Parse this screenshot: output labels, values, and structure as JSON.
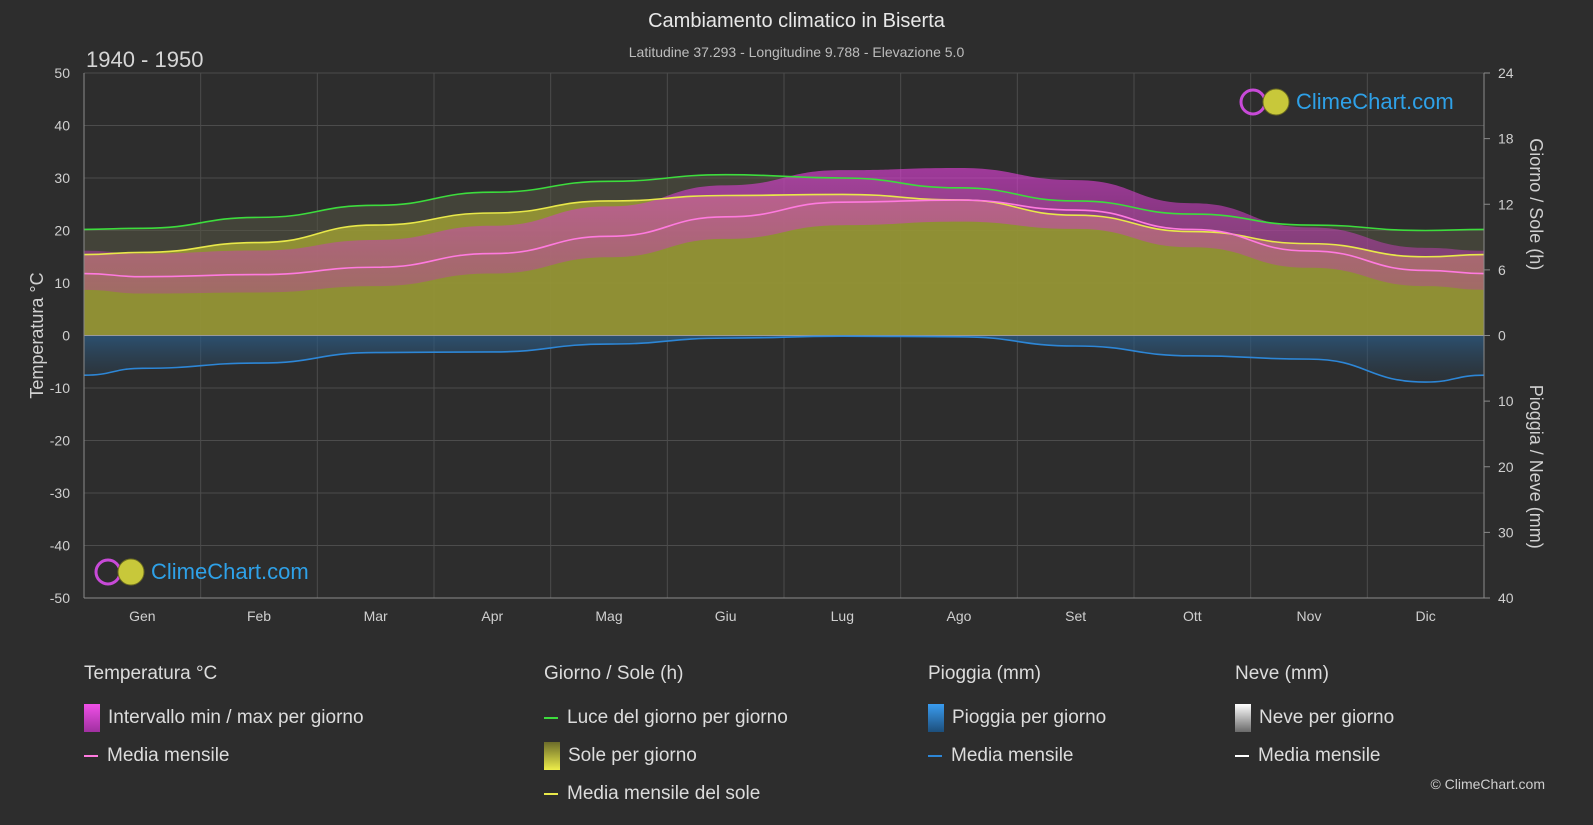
{
  "header": {
    "title": "Cambiamento climatico in Biserta",
    "subtitle": "Latitudine 37.293 - Longitudine 9.788 - Elevazione 5.0",
    "period": "1940 - 1950"
  },
  "logo_text": "ClimeChart.com",
  "copyright": "© ClimeChart.com",
  "axes": {
    "left_title": "Temperatura °C",
    "right_top_title": "Giorno / Sole (h)",
    "right_bottom_title": "Pioggia / Neve (mm)",
    "left_ticks": [
      "50",
      "40",
      "30",
      "20",
      "10",
      "0",
      "-10",
      "-20",
      "-30",
      "-40",
      "-50"
    ],
    "right_top_ticks": [
      "24",
      "18",
      "12",
      "6",
      "0"
    ],
    "right_bottom_ticks": [
      "10",
      "20",
      "30",
      "40"
    ]
  },
  "chart_data": {
    "type": "area",
    "categories": [
      "Gen",
      "Feb",
      "Mar",
      "Apr",
      "Mag",
      "Giu",
      "Lug",
      "Ago",
      "Set",
      "Ott",
      "Nov",
      "Dic"
    ],
    "temp_axis": {
      "label": "Temperatura °C",
      "ylim": [
        -50,
        50
      ]
    },
    "sun_axis": {
      "label": "Giorno / Sole (h)",
      "ylim": [
        0,
        24
      ]
    },
    "precip_axis": {
      "label": "Pioggia / Neve (mm)",
      "ylim": [
        0,
        40
      ],
      "inverted": true
    },
    "grid": true,
    "series": [
      {
        "name": "Luce del giorno per giorno",
        "axis": "sun",
        "color": "#3ddc3d",
        "values": [
          9.8,
          10.8,
          11.9,
          13.1,
          14.1,
          14.7,
          14.4,
          13.5,
          12.3,
          11.1,
          10.1,
          9.6
        ]
      },
      {
        "name": "Media mensile del sole",
        "axis": "sun",
        "color": "#e8e84a",
        "values": [
          7.6,
          8.5,
          10.1,
          11.2,
          12.3,
          12.8,
          12.9,
          12.4,
          11.0,
          9.5,
          8.4,
          7.2
        ]
      },
      {
        "name": "Sole per giorno",
        "axis": "sun",
        "color": "#9c9c34",
        "values": [
          7.6,
          8.5,
          10.1,
          11.2,
          12.3,
          12.8,
          12.9,
          12.4,
          11.0,
          9.5,
          8.4,
          7.2
        ]
      },
      {
        "name": "Media mensile",
        "axis": "temp",
        "color": "#ff7adf",
        "values": [
          11.2,
          11.6,
          13.0,
          15.6,
          18.9,
          22.6,
          25.4,
          25.8,
          23.9,
          20.2,
          16.1,
          12.4
        ]
      },
      {
        "name": "Intervallo min / max per giorno",
        "axis": "temp",
        "color": "#d23bc8",
        "min": [
          8.0,
          8.2,
          9.4,
          11.8,
          14.9,
          18.4,
          21.0,
          21.7,
          20.3,
          16.8,
          12.9,
          9.4
        ],
        "max": [
          15.6,
          16.2,
          18.2,
          20.9,
          24.6,
          28.6,
          31.5,
          31.9,
          29.6,
          25.2,
          20.6,
          16.7
        ]
      },
      {
        "name": "Pioggia media mensile",
        "axis": "precip",
        "color": "#2d86d6",
        "values": [
          5.0,
          4.2,
          2.6,
          2.5,
          1.3,
          0.4,
          0.1,
          0.2,
          1.6,
          3.1,
          3.6,
          7.1
        ]
      }
    ]
  },
  "legend": {
    "temp": {
      "header": "Temperatura °C",
      "range_label": "Intervallo min / max per giorno",
      "mean_label": "Media mensile"
    },
    "sun": {
      "header": "Giorno / Sole (h)",
      "daylight_label": "Luce del giorno per giorno",
      "sun_label": "Sole per giorno",
      "sun_mean_label": "Media mensile del sole"
    },
    "rain": {
      "header": "Pioggia (mm)",
      "rain_label": "Pioggia per giorno",
      "mean_label": "Media mensile"
    },
    "snow": {
      "header": "Neve (mm)",
      "snow_label": "Neve per giorno",
      "mean_label": "Media mensile"
    }
  },
  "colors": {
    "background": "#2d2d2d",
    "daylight": "#3ddc3d",
    "sun_mean": "#e8e84a",
    "sun_fill": "#9c9c34",
    "temp_mean": "#ff7adf",
    "temp_range": "#d23bc8",
    "rain": "#2d86d6",
    "snow": "#ffffff",
    "logo": "#2ea1e8"
  }
}
